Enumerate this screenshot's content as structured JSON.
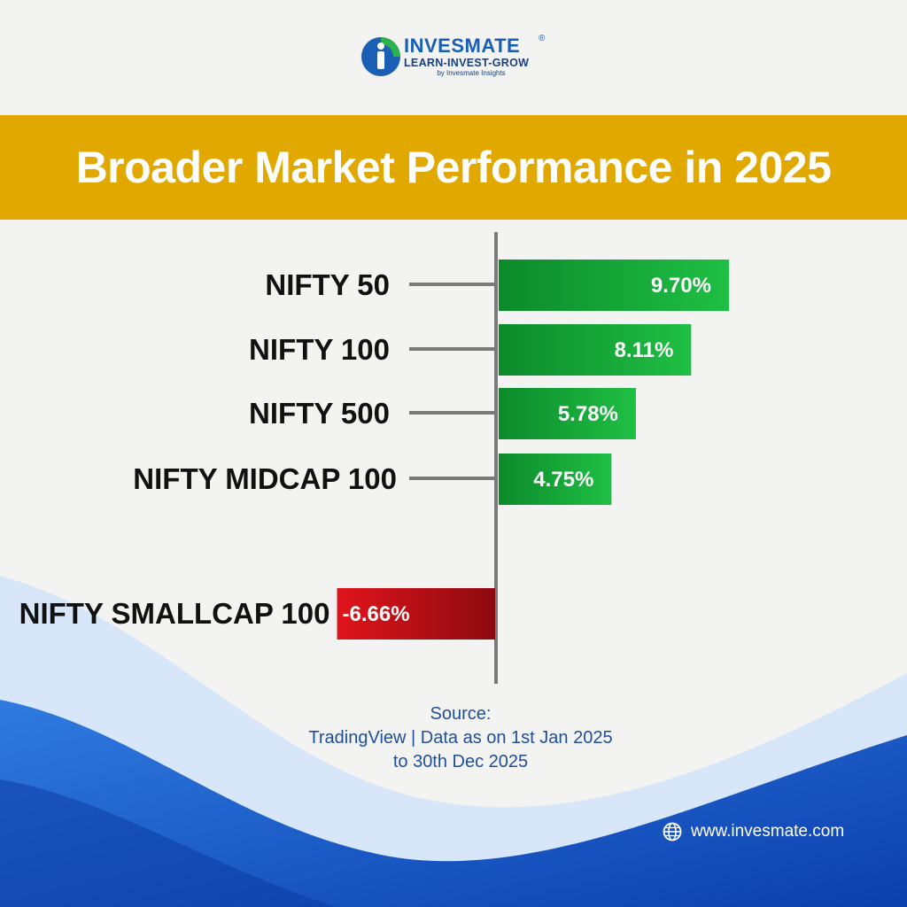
{
  "brand": {
    "name": "INVESMATE",
    "registered": "®",
    "tagline": "LEARN-INVEST-GROW",
    "byline": "by Invesmate Insights",
    "logo_icon": "invesmate-i-logo-icon"
  },
  "title": "Broader Market Performance in 2025",
  "chart_data": {
    "type": "bar",
    "orientation": "horizontal",
    "categories": [
      "NIFTY 50",
      "NIFTY 100",
      "NIFTY 500",
      "NIFTY MIDCAP 100",
      "NIFTY SMALLCAP 100"
    ],
    "values": [
      9.7,
      8.11,
      5.78,
      4.75,
      -6.66
    ],
    "value_labels": [
      "9.70%",
      "8.11%",
      "5.78%",
      "4.75%",
      "-6.66%"
    ],
    "title": "Broader Market Performance in 2025",
    "xlabel": "",
    "ylabel": "",
    "unit": "%",
    "colors": {
      "positive": "#1aae3a",
      "negative": "#d0141b"
    }
  },
  "source": {
    "heading": "Source:",
    "line1": "TradingView | Data as on 1st Jan 2025",
    "line2": "to 30th Dec 2025"
  },
  "footer": {
    "website": "www.invesmate.com",
    "website_icon": "globe-icon"
  },
  "colors": {
    "banner": "#e1a900",
    "brand_blue": "#1a5fb4",
    "text_dark": "#111111",
    "source_text": "#1f4f9a"
  }
}
